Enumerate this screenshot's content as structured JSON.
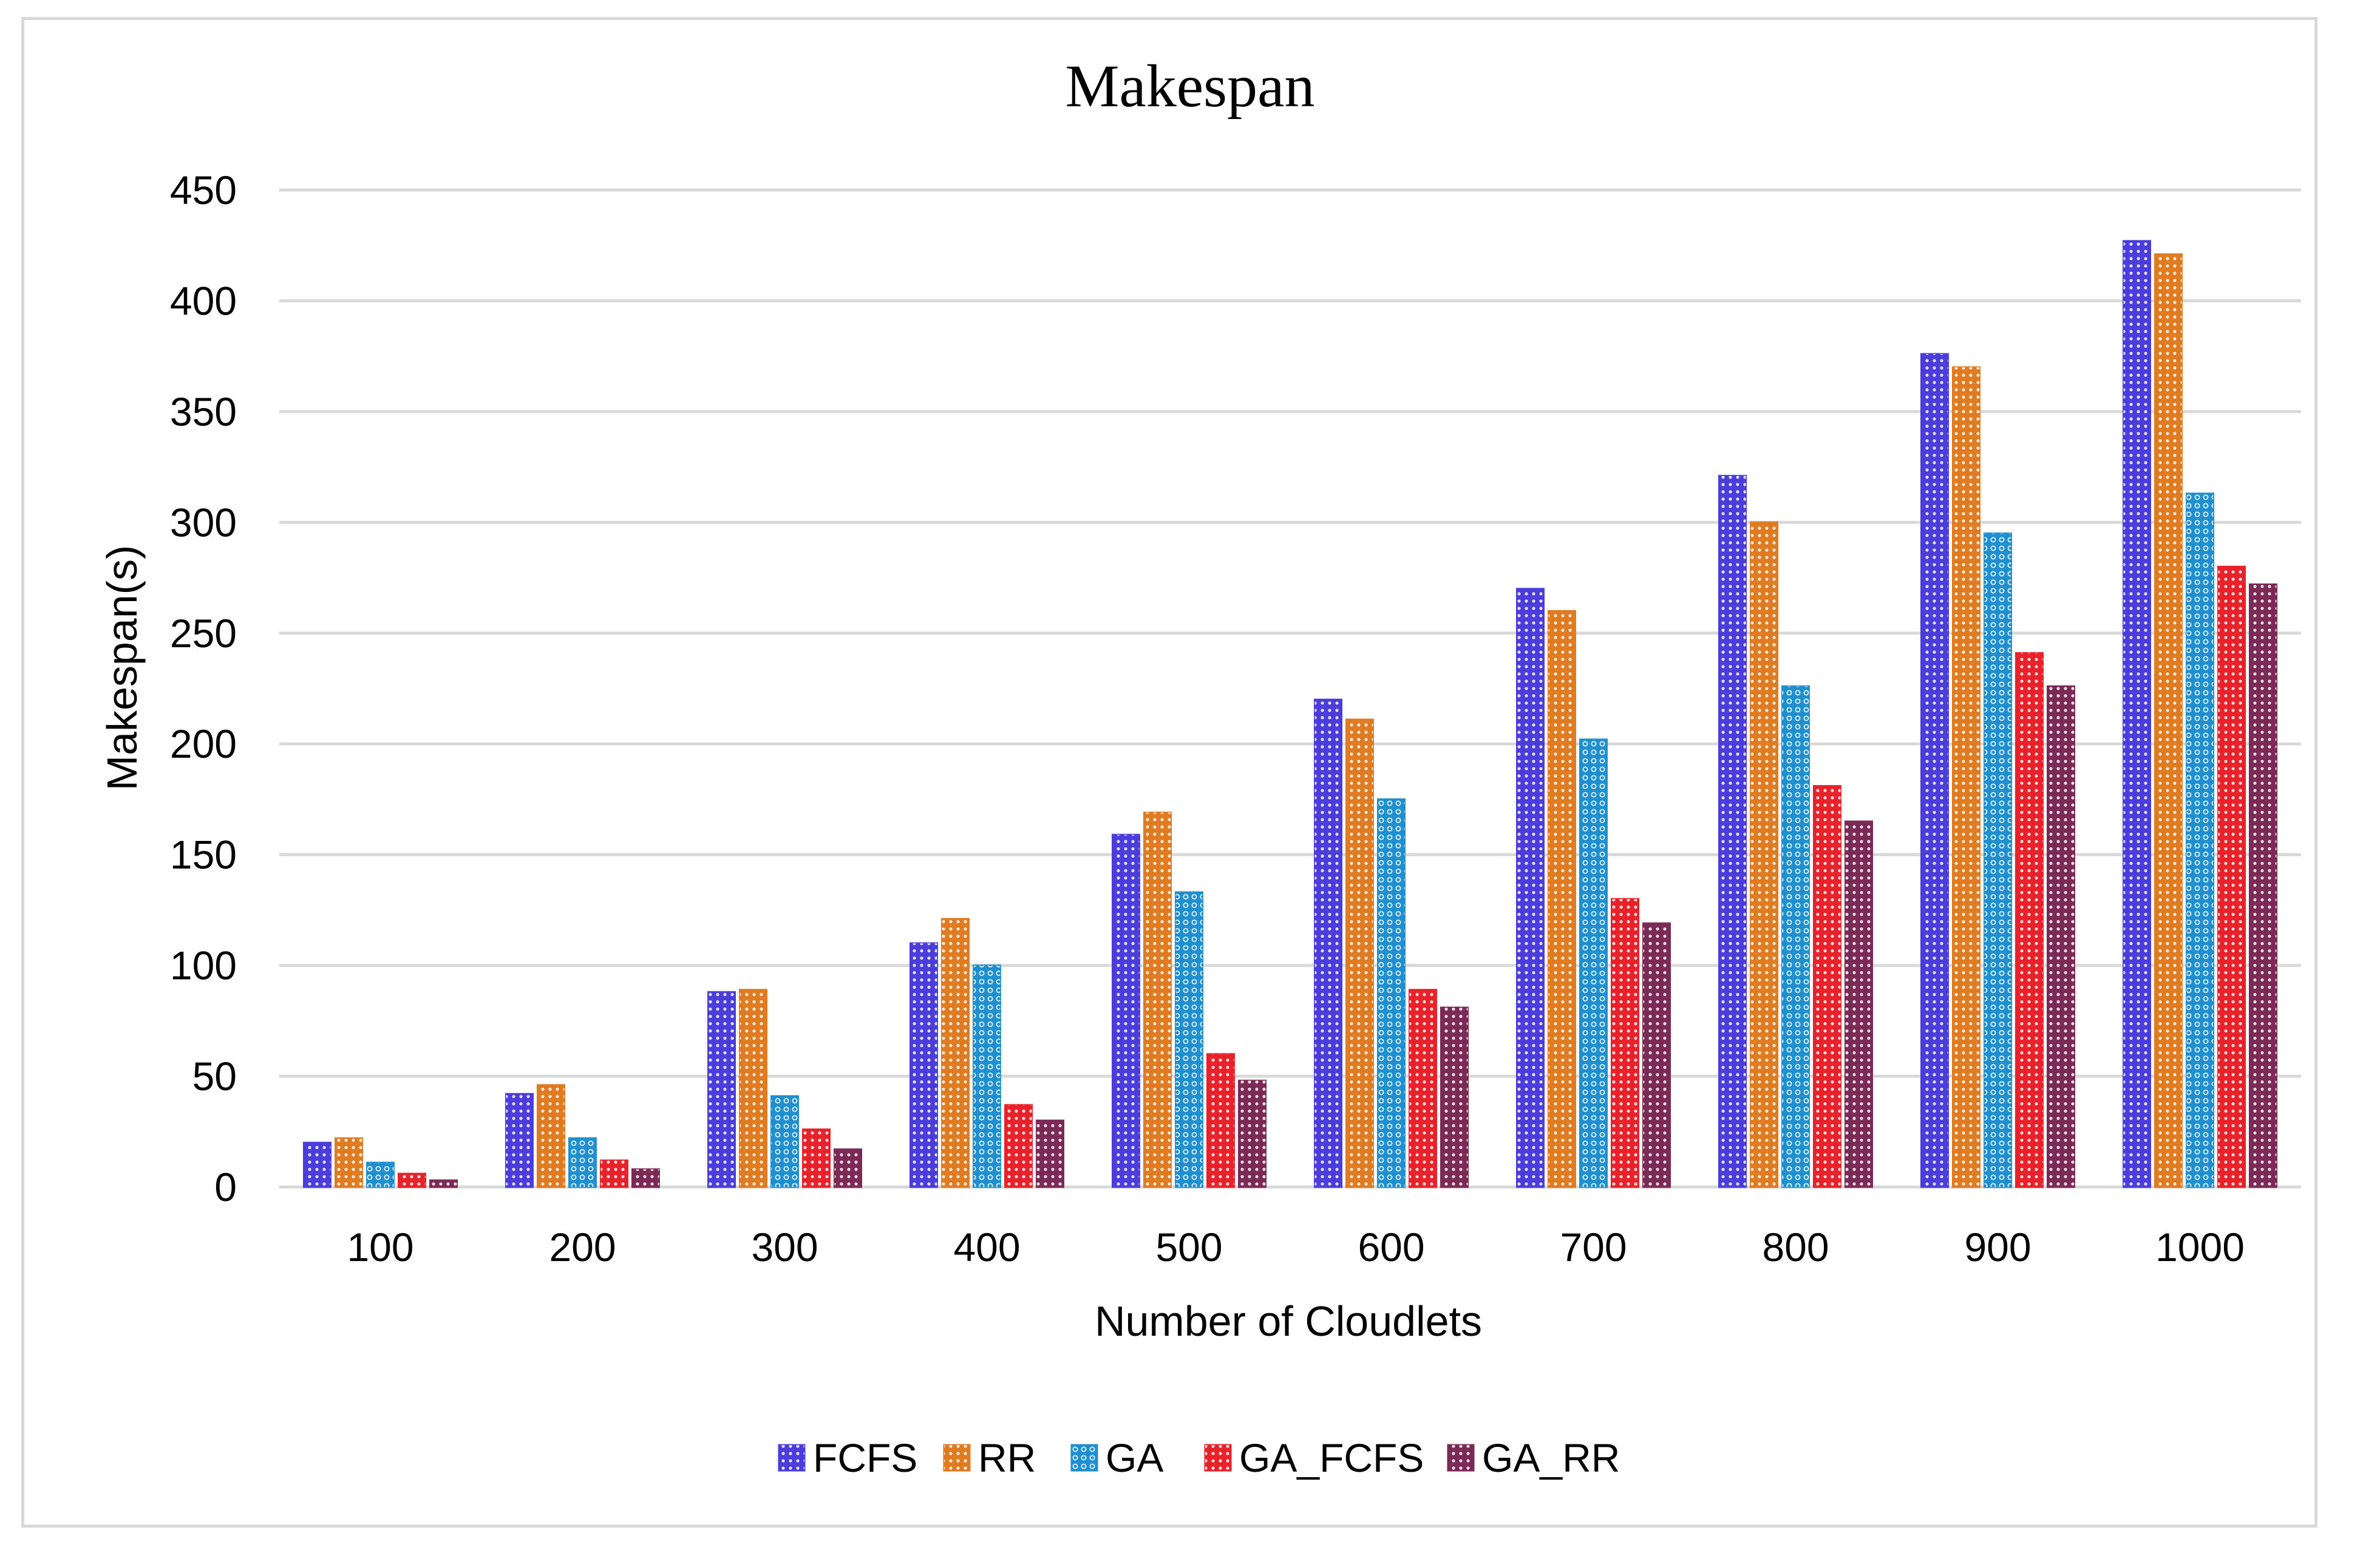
{
  "chart_data": {
    "type": "bar",
    "title": "Makespan",
    "xlabel": "Number of Cloudlets",
    "ylabel": "Makespan(s)",
    "ylim": [
      0,
      450
    ],
    "yticks": [
      0,
      50,
      100,
      150,
      200,
      250,
      300,
      350,
      400,
      450
    ],
    "grid": true,
    "legend_position": "bottom",
    "categories": [
      "100",
      "200",
      "300",
      "400",
      "500",
      "600",
      "700",
      "800",
      "900",
      "1000"
    ],
    "series": [
      {
        "name": "FCFS",
        "color": "#4a3ddb",
        "values": [
          20,
          42,
          88,
          110,
          159,
          220,
          270,
          321,
          376,
          427
        ]
      },
      {
        "name": "RR",
        "color": "#e07b22",
        "values": [
          22,
          46,
          89,
          121,
          169,
          211,
          260,
          300,
          370,
          421
        ]
      },
      {
        "name": "GA",
        "color": "#1f8fd0",
        "values": [
          11,
          22,
          41,
          100,
          133,
          175,
          202,
          226,
          295,
          313
        ]
      },
      {
        "name": "GA_FCFS",
        "color": "#e8212b",
        "values": [
          6,
          12,
          26,
          37,
          60,
          89,
          130,
          181,
          241,
          280
        ]
      },
      {
        "name": "GA_RR",
        "color": "#7a2a55",
        "values": [
          3,
          8,
          17,
          30,
          48,
          81,
          119,
          165,
          226,
          272
        ]
      }
    ]
  }
}
